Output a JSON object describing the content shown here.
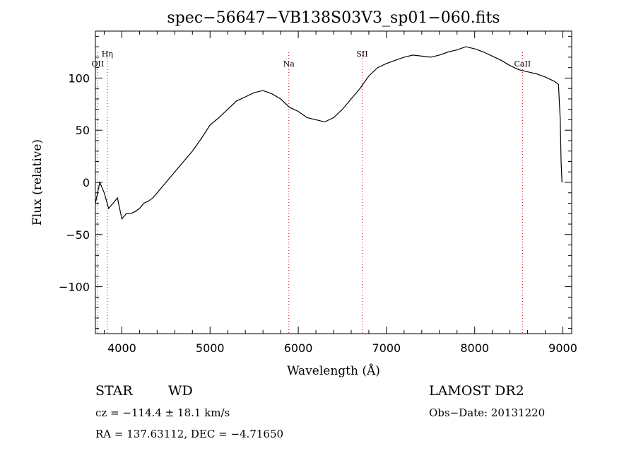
{
  "chart_data": {
    "type": "line",
    "title": "spec−56647−VB138S03V3_sp01−060.fits",
    "xlabel": "Wavelength (Å)",
    "ylabel": "Flux (relative)",
    "xlim": [
      3700,
      9100
    ],
    "ylim": [
      -145,
      145
    ],
    "xticks": [
      4000,
      5000,
      6000,
      7000,
      8000,
      9000
    ],
    "xtick_labels": [
      "4000",
      "5000",
      "6000",
      "7000",
      "8000",
      "9000"
    ],
    "yticks": [
      -100,
      -50,
      0,
      50,
      100
    ],
    "ytick_labels": [
      "−100",
      "−50",
      "0",
      "50",
      "100"
    ],
    "grid": false,
    "line_color": "#000000",
    "marker_color": "#cc0000",
    "series": [
      {
        "x": [
          3700,
          3750,
          3800,
          3850,
          3900,
          3950,
          4000,
          4050,
          4100,
          4150,
          4200,
          4250,
          4300,
          4350,
          4400,
          4450,
          4500,
          4600,
          4700,
          4800,
          4900,
          5000,
          5100,
          5200,
          5300,
          5400,
          5500,
          5600,
          5700,
          5800,
          5900,
          6000,
          6100,
          6200,
          6300,
          6400,
          6500,
          6600,
          6700,
          6800,
          6900,
          7000,
          7100,
          7200,
          7300,
          7400,
          7500,
          7600,
          7700,
          7800,
          7900,
          8000,
          8100,
          8200,
          8300,
          8400,
          8500,
          8600,
          8700,
          8800,
          8900,
          8950,
          8970,
          8980,
          8990
        ],
        "y": [
          -20,
          0,
          -10,
          -25,
          -20,
          -15,
          -35,
          -30,
          -30,
          -28,
          -25,
          -20,
          -18,
          -15,
          -10,
          -5,
          0,
          10,
          20,
          30,
          42,
          55,
          62,
          70,
          78,
          82,
          86,
          88,
          85,
          80,
          72,
          68,
          62,
          60,
          58,
          62,
          70,
          80,
          90,
          102,
          110,
          114,
          117,
          120,
          122,
          121,
          120,
          122,
          125,
          127,
          130,
          128,
          125,
          121,
          117,
          112,
          108,
          106,
          104,
          101,
          97,
          94,
          60,
          20,
          0
        ]
      }
    ],
    "lines": [
      {
        "label": "OII",
        "x": 3727
      },
      {
        "label": "Hη",
        "x": 3835
      },
      {
        "label": "Na",
        "x": 5893
      },
      {
        "label": "SII",
        "x": 6724
      },
      {
        "label": "CaII",
        "x": 8542
      }
    ]
  },
  "footer": {
    "left_class": "STAR",
    "left_subclass": "WD",
    "survey": "LAMOST DR2",
    "cz": "cz = −114.4 ± 18.1 km/s",
    "obs_date": "Obs−Date: 20131220",
    "radec": "RA = 137.63112, DEC = −4.71650"
  }
}
